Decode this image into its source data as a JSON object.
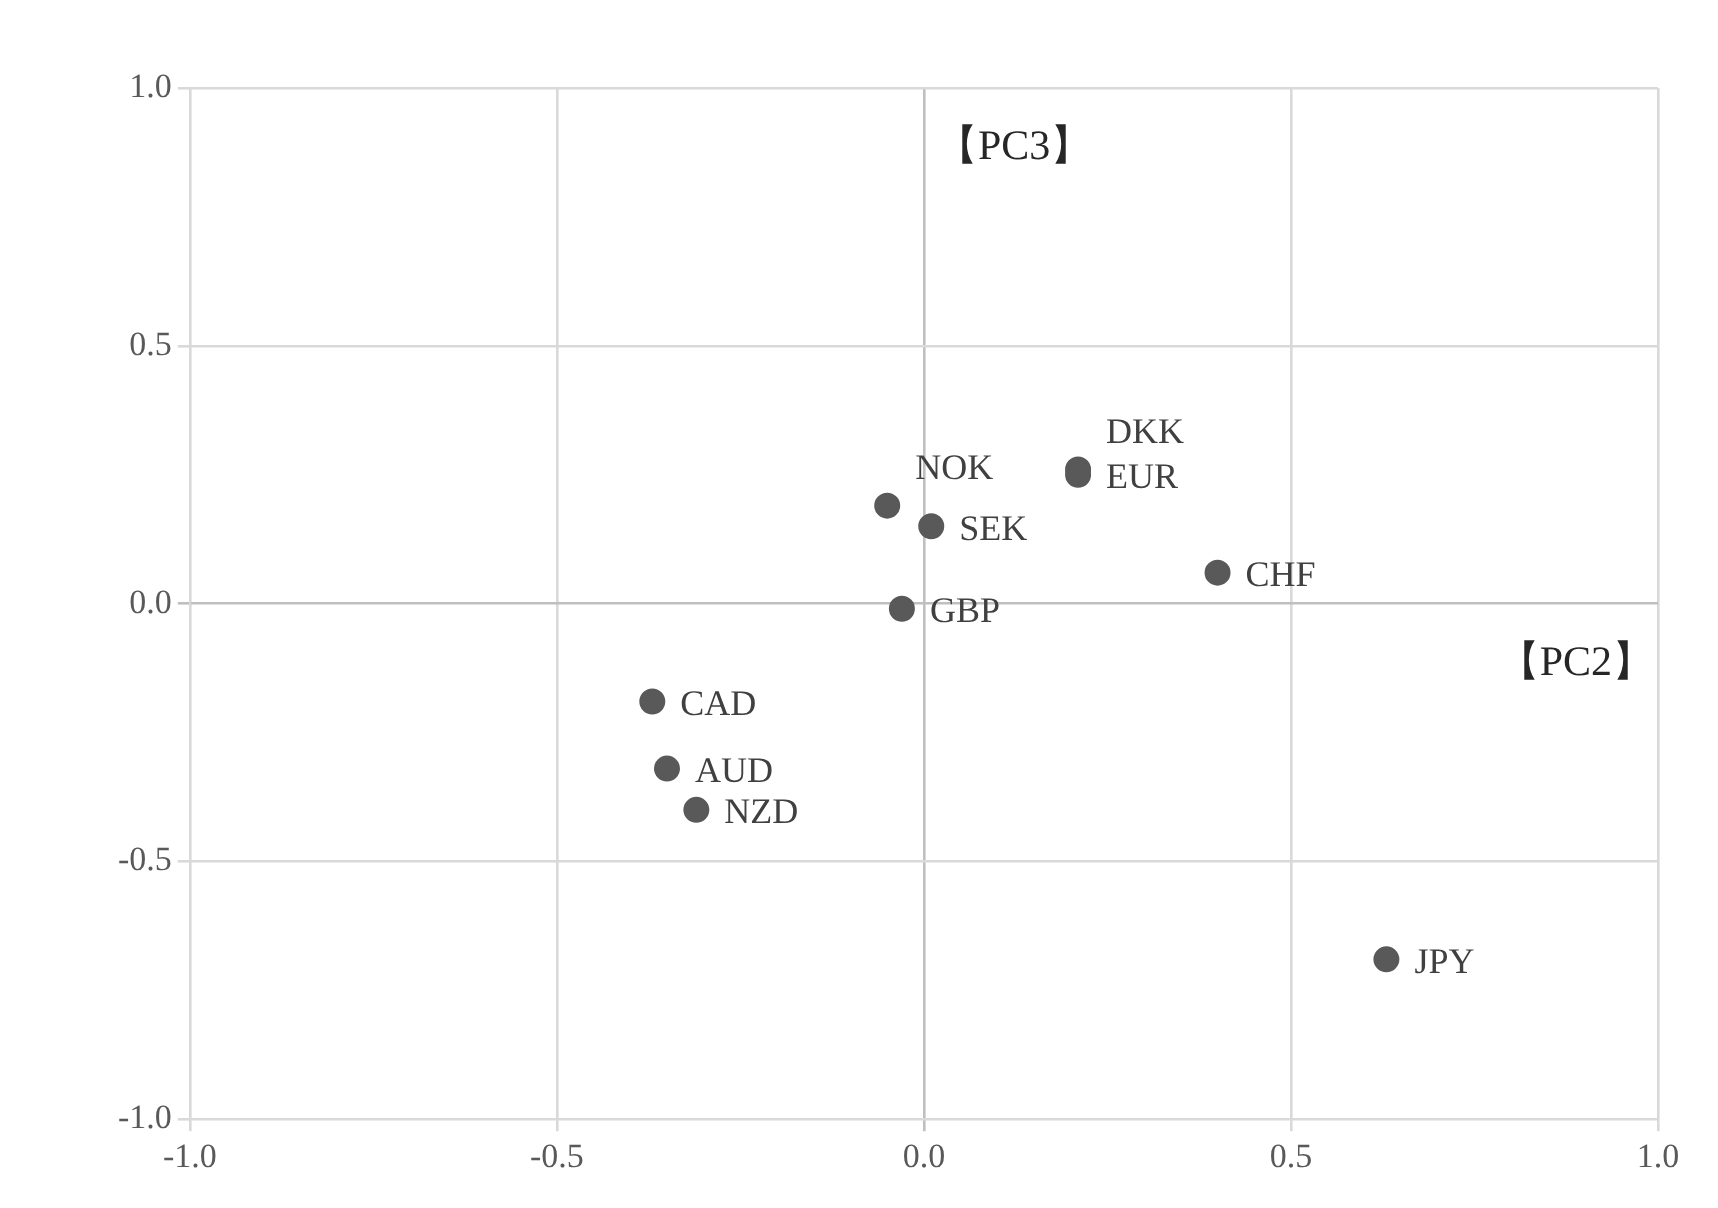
{
  "chart_data": {
    "type": "scatter",
    "xlabel": "【PC2】",
    "ylabel": "【PC3】",
    "xlim": [
      -1,
      1
    ],
    "ylim": [
      -1,
      1
    ],
    "xticks": [
      {
        "value": -1,
        "label": "-1.0"
      },
      {
        "value": -0.5,
        "label": "-0.5"
      },
      {
        "value": 0,
        "label": "0.0"
      },
      {
        "value": 0.5,
        "label": "0.5"
      },
      {
        "value": 1,
        "label": "1.0"
      }
    ],
    "yticks": [
      {
        "value": -1,
        "label": "-1.0"
      },
      {
        "value": -0.5,
        "label": "-0.5"
      },
      {
        "value": 0,
        "label": "0.0"
      },
      {
        "value": 0.5,
        "label": "0.5"
      },
      {
        "value": 1,
        "label": "1.0"
      }
    ],
    "grid": true,
    "legend": false,
    "marker": "circle",
    "series": [
      {
        "name": "SEK",
        "color": "#595959",
        "x": [
          0.01
        ],
        "values": [
          0.15
        ]
      },
      {
        "name": "EUR",
        "color": "#595959",
        "x": [
          0.21
        ],
        "values": [
          0.25
        ]
      },
      {
        "name": "DKK",
        "color": "#595959",
        "x": [
          0.21
        ],
        "values": [
          0.26
        ]
      },
      {
        "name": "NOK",
        "color": "#595959",
        "x": [
          -0.05
        ],
        "values": [
          0.19
        ]
      },
      {
        "name": "CHF",
        "color": "#595959",
        "x": [
          0.4
        ],
        "values": [
          0.06
        ]
      },
      {
        "name": "GBP",
        "color": "#595959",
        "x": [
          -0.03
        ],
        "values": [
          -0.01
        ]
      },
      {
        "name": "CAD",
        "color": "#595959",
        "x": [
          -0.37
        ],
        "values": [
          -0.19
        ]
      },
      {
        "name": "AUD",
        "color": "#595959",
        "x": [
          -0.35
        ],
        "values": [
          -0.32
        ]
      },
      {
        "name": "NZD",
        "color": "#595959",
        "x": [
          -0.31
        ],
        "values": [
          -0.4
        ]
      },
      {
        "name": "JPY",
        "color": "#595959",
        "x": [
          0.63
        ],
        "values": [
          -0.69
        ]
      }
    ]
  }
}
